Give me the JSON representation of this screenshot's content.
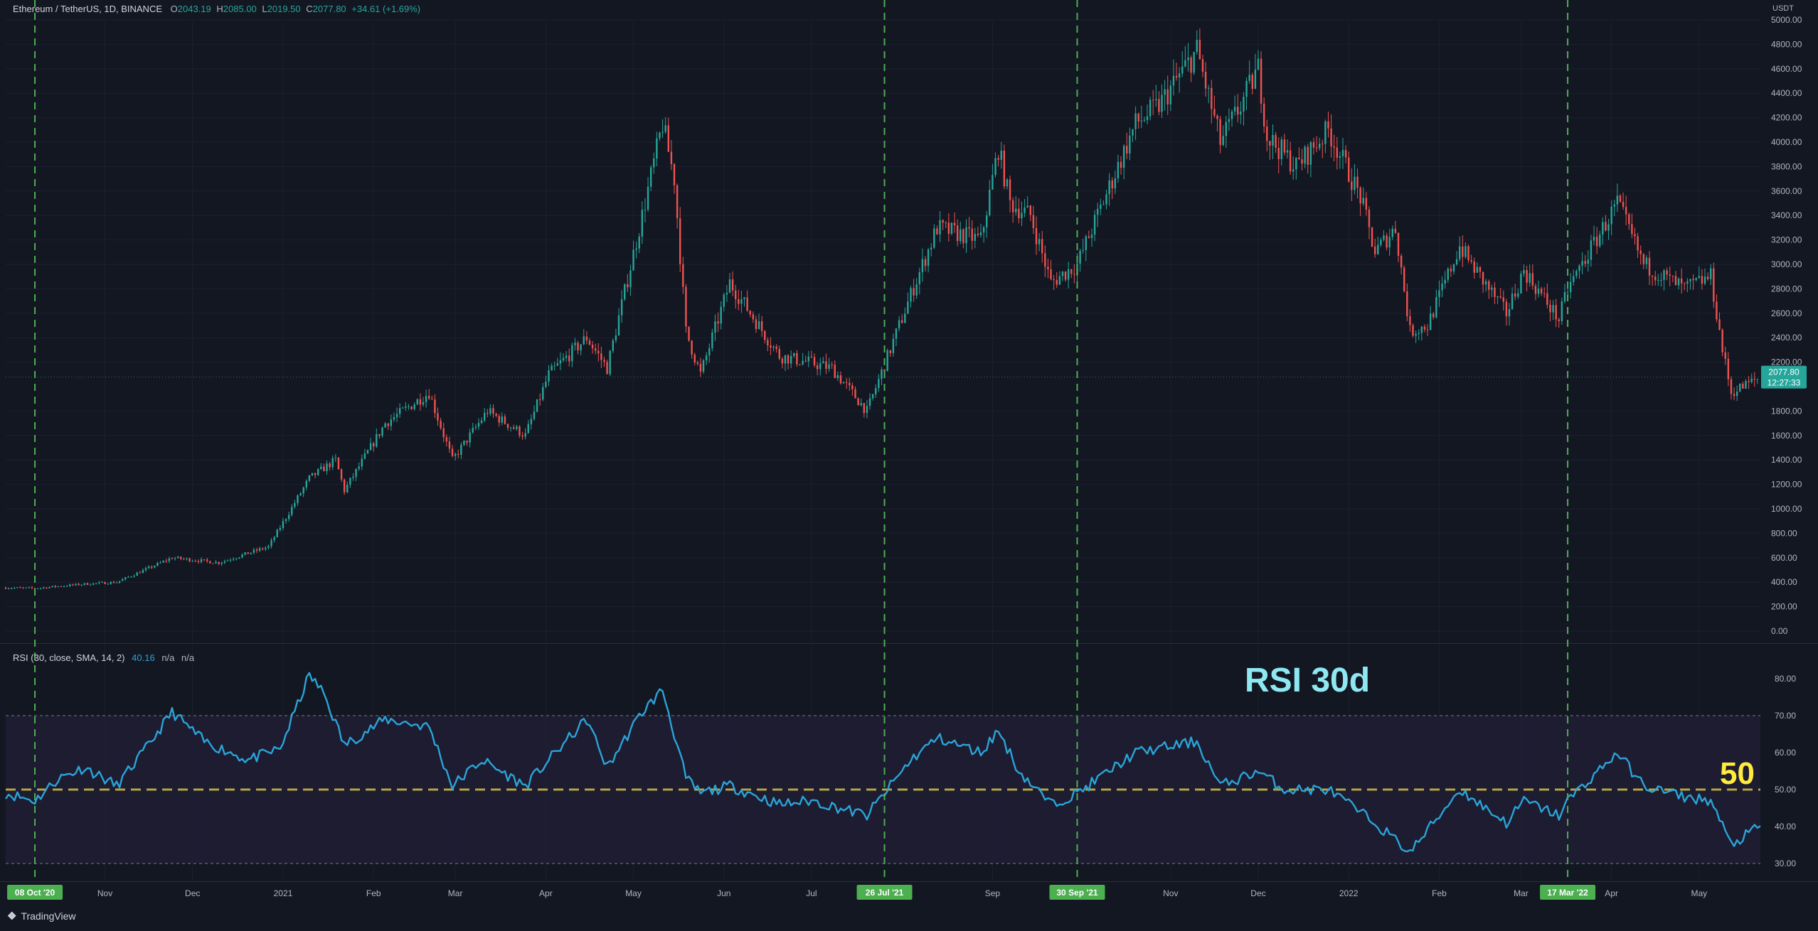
{
  "header": {
    "symbol": "Ethereum / TetherUS, 1D, BINANCE",
    "open_label": "O",
    "open": "2043.19",
    "high_label": "H",
    "high": "2085.00",
    "low_label": "L",
    "low": "2019.50",
    "close_label": "C",
    "close": "2077.80",
    "change": "+34.61 (+1.69%)"
  },
  "price_axis": {
    "unit": "USDT",
    "ticks": [
      "5000.00",
      "4800.00",
      "4600.00",
      "4400.00",
      "4200.00",
      "4000.00",
      "3800.00",
      "3600.00",
      "3400.00",
      "3200.00",
      "3000.00",
      "2800.00",
      "2600.00",
      "2400.00",
      "2200.00",
      "1800.00",
      "1600.00",
      "1400.00",
      "1200.00",
      "1000.00",
      "800.00",
      "600.00",
      "400.00",
      "200.00",
      "0.00"
    ],
    "last_price": "2077.80",
    "countdown": "12:27:33"
  },
  "rsi_header": {
    "label": "RSI (30, close, SMA, 14, 2)",
    "value": "40.16",
    "na1": "n/a",
    "na2": "n/a"
  },
  "rsi_axis": {
    "ticks": [
      "80.00",
      "70.00",
      "60.00",
      "50.00",
      "40.00",
      "30.00"
    ]
  },
  "annotations": {
    "rsi_title": "RSI 30d",
    "fifty_label": "50"
  },
  "time_axis": {
    "ticks": [
      {
        "label": "Nov",
        "date": "2020-11-01"
      },
      {
        "label": "Dec",
        "date": "2020-12-01"
      },
      {
        "label": "2021",
        "date": "2021-01-01"
      },
      {
        "label": "Feb",
        "date": "2021-02-01"
      },
      {
        "label": "Mar",
        "date": "2021-03-01"
      },
      {
        "label": "Apr",
        "date": "2021-04-01"
      },
      {
        "label": "May",
        "date": "2021-05-01"
      },
      {
        "label": "Jun",
        "date": "2021-06-01"
      },
      {
        "label": "Jul",
        "date": "2021-07-01"
      },
      {
        "label": "Sep",
        "date": "2021-09-01"
      },
      {
        "label": "Nov",
        "date": "2021-11-01"
      },
      {
        "label": "Dec",
        "date": "2021-12-01"
      },
      {
        "label": "2022",
        "date": "2022-01-01"
      },
      {
        "label": "Feb",
        "date": "2022-02-01"
      },
      {
        "label": "Mar",
        "date": "2022-03-01"
      },
      {
        "label": "Apr",
        "date": "2022-04-01"
      },
      {
        "label": "May",
        "date": "2022-05-01"
      }
    ],
    "markers": [
      {
        "label": "08 Oct '20",
        "date": "2020-10-08"
      },
      {
        "label": "26 Jul '21",
        "date": "2021-07-26"
      },
      {
        "label": "30 Sep '21",
        "date": "2021-09-30"
      },
      {
        "label": "17 Mar '22",
        "date": "2022-03-17"
      }
    ]
  },
  "branding": {
    "name": "TradingView"
  },
  "colors": {
    "background": "#131722",
    "up": "#26a69a",
    "down": "#ef5350",
    "rsi_line": "#2aa4d8",
    "rsi_band": "#211e36",
    "marker_line": "#4caf50",
    "marker_label_bg": "#4caf50",
    "fifty_line": "#b5a642",
    "rsi_title": "#8ee8f2",
    "fifty_label": "#ffeb3b",
    "last_price_tag": "#26a69a"
  },
  "chart_data": [
    {
      "type": "candlestick",
      "title": "Ethereum / TetherUS, 1D, BINANCE",
      "ylabel": "USDT",
      "ylim": [
        0,
        5000
      ],
      "x_range": [
        "2020-09-28",
        "2022-05-22"
      ],
      "anchors": [
        {
          "date": "2020-09-28",
          "close": 355
        },
        {
          "date": "2020-10-08",
          "close": 350
        },
        {
          "date": "2020-10-25",
          "close": 385
        },
        {
          "date": "2020-11-05",
          "close": 400
        },
        {
          "date": "2020-11-24",
          "close": 600
        },
        {
          "date": "2020-12-10",
          "close": 560
        },
        {
          "date": "2020-12-27",
          "close": 690
        },
        {
          "date": "2021-01-10",
          "close": 1250
        },
        {
          "date": "2021-01-19",
          "close": 1400
        },
        {
          "date": "2021-01-22",
          "close": 1150
        },
        {
          "date": "2021-02-05",
          "close": 1700
        },
        {
          "date": "2021-02-20",
          "close": 1950
        },
        {
          "date": "2021-02-28",
          "close": 1400
        },
        {
          "date": "2021-03-12",
          "close": 1800
        },
        {
          "date": "2021-03-25",
          "close": 1600
        },
        {
          "date": "2021-04-02",
          "close": 2100
        },
        {
          "date": "2021-04-15",
          "close": 2400
        },
        {
          "date": "2021-04-22",
          "close": 2150
        },
        {
          "date": "2021-05-04",
          "close": 3400
        },
        {
          "date": "2021-05-11",
          "close": 4150
        },
        {
          "date": "2021-05-15",
          "close": 3700
        },
        {
          "date": "2021-05-19",
          "close": 2450
        },
        {
          "date": "2021-05-24",
          "close": 2100
        },
        {
          "date": "2021-06-03",
          "close": 2850
        },
        {
          "date": "2021-06-20",
          "close": 2250
        },
        {
          "date": "2021-06-30",
          "close": 2200
        },
        {
          "date": "2021-07-08",
          "close": 2150
        },
        {
          "date": "2021-07-20",
          "close": 1800
        },
        {
          "date": "2021-08-04",
          "close": 2750
        },
        {
          "date": "2021-08-13",
          "close": 3300
        },
        {
          "date": "2021-08-28",
          "close": 3200
        },
        {
          "date": "2021-09-03",
          "close": 3950
        },
        {
          "date": "2021-09-07",
          "close": 3500
        },
        {
          "date": "2021-09-14",
          "close": 3400
        },
        {
          "date": "2021-09-21",
          "close": 2850
        },
        {
          "date": "2021-09-30",
          "close": 3000
        },
        {
          "date": "2021-10-20",
          "close": 4150
        },
        {
          "date": "2021-10-28",
          "close": 4300
        },
        {
          "date": "2021-11-10",
          "close": 4750
        },
        {
          "date": "2021-11-18",
          "close": 4000
        },
        {
          "date": "2021-11-25",
          "close": 4300
        },
        {
          "date": "2021-12-01",
          "close": 4600
        },
        {
          "date": "2021-12-04",
          "close": 4050
        },
        {
          "date": "2021-12-14",
          "close": 3800
        },
        {
          "date": "2021-12-25",
          "close": 4100
        },
        {
          "date": "2022-01-05",
          "close": 3550
        },
        {
          "date": "2022-01-10",
          "close": 3100
        },
        {
          "date": "2022-01-17",
          "close": 3300
        },
        {
          "date": "2022-01-22",
          "close": 2450
        },
        {
          "date": "2022-01-28",
          "close": 2500
        },
        {
          "date": "2022-02-08",
          "close": 3150
        },
        {
          "date": "2022-02-12",
          "close": 3000
        },
        {
          "date": "2022-02-24",
          "close": 2600
        },
        {
          "date": "2022-03-02",
          "close": 2950
        },
        {
          "date": "2022-03-14",
          "close": 2550
        },
        {
          "date": "2022-03-17",
          "close": 2800
        },
        {
          "date": "2022-04-03",
          "close": 3500
        },
        {
          "date": "2022-04-12",
          "close": 3000
        },
        {
          "date": "2022-04-26",
          "close": 2800
        },
        {
          "date": "2022-05-05",
          "close": 2900
        },
        {
          "date": "2022-05-09",
          "close": 2300
        },
        {
          "date": "2022-05-12",
          "close": 1950
        },
        {
          "date": "2022-05-22",
          "close": 2077.8
        }
      ]
    },
    {
      "type": "line",
      "title": "RSI (30, close, SMA, 14, 2)",
      "ylim": [
        28,
        84
      ],
      "reference_lines": [
        70,
        50,
        30
      ],
      "series": [
        {
          "name": "RSI",
          "points": [
            {
              "date": "2020-09-28",
              "value": 49
            },
            {
              "date": "2020-10-08",
              "value": 47
            },
            {
              "date": "2020-10-16",
              "value": 53
            },
            {
              "date": "2020-10-25",
              "value": 56
            },
            {
              "date": "2020-11-05",
              "value": 51
            },
            {
              "date": "2020-11-15",
              "value": 61
            },
            {
              "date": "2020-11-24",
              "value": 71
            },
            {
              "date": "2020-12-05",
              "value": 63
            },
            {
              "date": "2020-12-20",
              "value": 58
            },
            {
              "date": "2020-12-31",
              "value": 61
            },
            {
              "date": "2021-01-10",
              "value": 81
            },
            {
              "date": "2021-01-15",
              "value": 76
            },
            {
              "date": "2021-01-22",
              "value": 62
            },
            {
              "date": "2021-02-05",
              "value": 69
            },
            {
              "date": "2021-02-20",
              "value": 67
            },
            {
              "date": "2021-02-28",
              "value": 51
            },
            {
              "date": "2021-03-10",
              "value": 58
            },
            {
              "date": "2021-03-25",
              "value": 51
            },
            {
              "date": "2021-04-02",
              "value": 58
            },
            {
              "date": "2021-04-15",
              "value": 69
            },
            {
              "date": "2021-04-22",
              "value": 56
            },
            {
              "date": "2021-05-04",
              "value": 71
            },
            {
              "date": "2021-05-11",
              "value": 77
            },
            {
              "date": "2021-05-19",
              "value": 53
            },
            {
              "date": "2021-05-24",
              "value": 49
            },
            {
              "date": "2021-06-03",
              "value": 51
            },
            {
              "date": "2021-06-20",
              "value": 46
            },
            {
              "date": "2021-07-01",
              "value": 47
            },
            {
              "date": "2021-07-20",
              "value": 43
            },
            {
              "date": "2021-08-04",
              "value": 58
            },
            {
              "date": "2021-08-13",
              "value": 64
            },
            {
              "date": "2021-08-28",
              "value": 60
            },
            {
              "date": "2021-09-03",
              "value": 66
            },
            {
              "date": "2021-09-10",
              "value": 55
            },
            {
              "date": "2021-09-21",
              "value": 46
            },
            {
              "date": "2021-09-30",
              "value": 49
            },
            {
              "date": "2021-10-20",
              "value": 60
            },
            {
              "date": "2021-11-10",
              "value": 63
            },
            {
              "date": "2021-11-18",
              "value": 51
            },
            {
              "date": "2021-12-01",
              "value": 55
            },
            {
              "date": "2021-12-10",
              "value": 50
            },
            {
              "date": "2021-12-25",
              "value": 50
            },
            {
              "date": "2022-01-10",
              "value": 41
            },
            {
              "date": "2022-01-22",
              "value": 33
            },
            {
              "date": "2022-02-08",
              "value": 50
            },
            {
              "date": "2022-02-24",
              "value": 41
            },
            {
              "date": "2022-03-02",
              "value": 47
            },
            {
              "date": "2022-03-14",
              "value": 43
            },
            {
              "date": "2022-03-17",
              "value": 47
            },
            {
              "date": "2022-04-03",
              "value": 60
            },
            {
              "date": "2022-04-12",
              "value": 51
            },
            {
              "date": "2022-04-26",
              "value": 48
            },
            {
              "date": "2022-05-05",
              "value": 47
            },
            {
              "date": "2022-05-12",
              "value": 35
            },
            {
              "date": "2022-05-22",
              "value": 40.16
            }
          ]
        }
      ]
    }
  ]
}
